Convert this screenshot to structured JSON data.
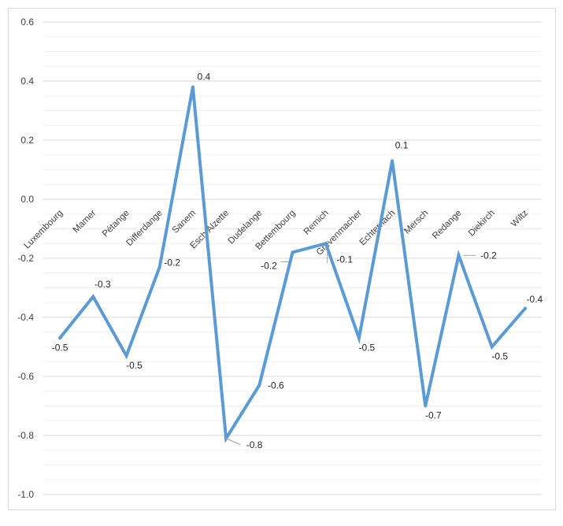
{
  "chart_data": {
    "type": "line",
    "title": "",
    "xlabel": "",
    "ylabel": "",
    "ylim": [
      -1.0,
      0.6
    ],
    "y_ticks": [
      "0.6",
      "0.4",
      "0.2",
      "0.0",
      "-0.2",
      "-0.4",
      "-0.6",
      "-0.8",
      "-1.0"
    ],
    "y_tick_values": [
      0.6,
      0.4,
      0.2,
      0.0,
      -0.2,
      -0.4,
      -0.6,
      -0.8,
      -1.0
    ],
    "minor_gridlines": true,
    "legend": "none",
    "line_color": "#5b9bd5",
    "categories": [
      "Luxembourg",
      "Mamer",
      "Pétange",
      "Differdange",
      "Sanem",
      "Esch/Alzette",
      "Dudelange",
      "Bettembourg",
      "Remich",
      "Grevenmacher",
      "Echternach",
      "Mersch",
      "Redange",
      "Diekirch",
      "Wiltz"
    ],
    "values": [
      -0.47,
      -0.33,
      -0.53,
      -0.23,
      0.38,
      -0.81,
      -0.63,
      -0.18,
      -0.15,
      -0.47,
      0.13,
      -0.7,
      -0.19,
      -0.5,
      -0.37
    ],
    "data_labels": [
      "-0.5",
      "-0.3",
      "-0.5",
      "-0.2",
      "0.4",
      "-0.8",
      "-0.6",
      "-0.2",
      "-0.1",
      "-0.5",
      "0.1",
      "-0.7",
      "-0.2",
      "-0.5",
      "-0.4"
    ]
  }
}
